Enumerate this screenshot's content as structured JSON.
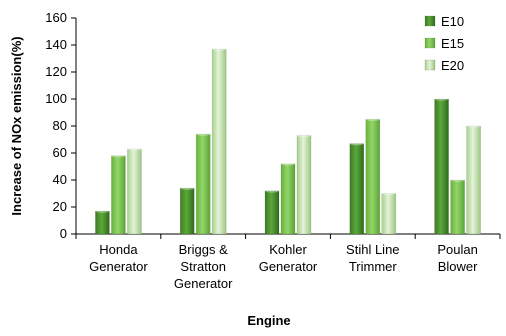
{
  "chart_data": {
    "type": "bar",
    "title": "",
    "xlabel": "Engine",
    "ylabel": "Increase of NOx emission(%)",
    "ylim": [
      0,
      160
    ],
    "yticks": [
      0,
      20,
      40,
      60,
      80,
      100,
      120,
      140,
      160
    ],
    "grid": false,
    "legend_position": "top-right",
    "categories": [
      [
        "Honda",
        "Generator"
      ],
      [
        "Briggs &",
        "Stratton",
        "Generator"
      ],
      [
        "Kohler",
        "Generator"
      ],
      [
        "Stihl Line",
        "Trimmer"
      ],
      [
        "Poulan",
        "Blower"
      ]
    ],
    "series": [
      {
        "name": "E10",
        "values": [
          17,
          34,
          32,
          67,
          100
        ],
        "color": "#4f8f2f"
      },
      {
        "name": "E15",
        "values": [
          58,
          74,
          52,
          85,
          40
        ],
        "color": "#78bf45"
      },
      {
        "name": "E20",
        "values": [
          63,
          137,
          73,
          30,
          80
        ],
        "color": "#bcdca4"
      }
    ]
  }
}
